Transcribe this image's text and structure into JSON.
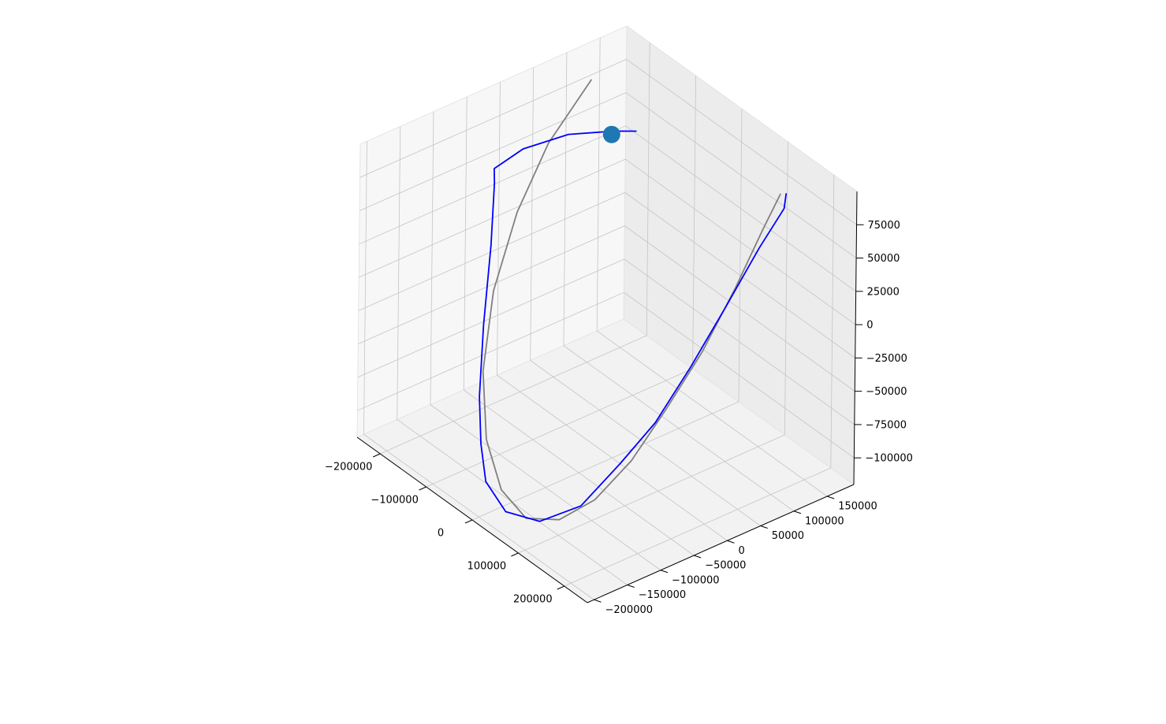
{
  "chart_data": {
    "type": "line",
    "projection": "3d",
    "title": "",
    "xlabel": "",
    "ylabel": "",
    "zlabel": "",
    "grid": true,
    "legend": "none",
    "xlim": [
      -250000,
      250000
    ],
    "ylim": [
      -210000,
      190000
    ],
    "zlim": [
      -120000,
      100000
    ],
    "x_ticks": [
      {
        "value": -200000,
        "label": "−200000"
      },
      {
        "value": -100000,
        "label": "−100000"
      },
      {
        "value": 0,
        "label": "0"
      },
      {
        "value": 100000,
        "label": "100000"
      },
      {
        "value": 200000,
        "label": "200000"
      }
    ],
    "y_ticks": [
      {
        "value": -200000,
        "label": "−200000"
      },
      {
        "value": -150000,
        "label": "−150000"
      },
      {
        "value": -100000,
        "label": "−100000"
      },
      {
        "value": -50000,
        "label": "−50000"
      },
      {
        "value": 0,
        "label": "0"
      },
      {
        "value": 50000,
        "label": "50000"
      },
      {
        "value": 100000,
        "label": "100000"
      },
      {
        "value": 150000,
        "label": "150000"
      }
    ],
    "z_ticks": [
      {
        "value": -100000,
        "label": "−100000"
      },
      {
        "value": -75000,
        "label": "−75000"
      },
      {
        "value": -50000,
        "label": "−50000"
      },
      {
        "value": -25000,
        "label": "−25000"
      },
      {
        "value": 0,
        "label": "0"
      },
      {
        "value": 25000,
        "label": "25000"
      },
      {
        "value": 50000,
        "label": "50000"
      },
      {
        "value": 75000,
        "label": "75000"
      }
    ],
    "series": [
      {
        "color": "#808080",
        "points": [
          [
            -248000,
            136000,
            72000
          ],
          [
            -230000,
            60000,
            46000
          ],
          [
            -196000,
            -10000,
            18000
          ],
          [
            -148000,
            -78000,
            -14000
          ],
          [
            -86000,
            -136000,
            -46000
          ],
          [
            -20000,
            -176000,
            -72000
          ],
          [
            42000,
            -196000,
            -90000
          ],
          [
            96000,
            -196000,
            -98000
          ],
          [
            136000,
            -174000,
            -94000
          ],
          [
            158000,
            -136000,
            -82000
          ],
          [
            170000,
            -90000,
            -60000
          ],
          [
            176000,
            -42000,
            -30000
          ],
          [
            178000,
            10000,
            2000
          ],
          [
            176000,
            60000,
            38000
          ],
          [
            170000,
            104000,
            70000
          ],
          [
            162000,
            136000,
            88000
          ]
        ]
      },
      {
        "color": "#0000ff",
        "points": [
          [
            -16000,
            42000,
            112000
          ],
          [
            -34000,
            22000,
            112000
          ],
          [
            -76000,
            -18000,
            108000
          ],
          [
            -116000,
            -58000,
            96000
          ],
          [
            -138000,
            -86000,
            82000
          ],
          [
            -140000,
            -84000,
            70000
          ],
          [
            -126000,
            -98000,
            30000
          ],
          [
            -106000,
            -122000,
            -20000
          ],
          [
            -76000,
            -148000,
            -60000
          ],
          [
            -46000,
            -166000,
            -84000
          ],
          [
            -6000,
            -186000,
            -98000
          ],
          [
            52000,
            -196000,
            -104000
          ],
          [
            108000,
            -184000,
            -100000
          ],
          [
            148000,
            -150000,
            -86000
          ],
          [
            166000,
            -104000,
            -60000
          ],
          [
            178000,
            -60000,
            -36000
          ],
          [
            182000,
            -10000,
            -4000
          ],
          [
            184000,
            40000,
            30000
          ],
          [
            186000,
            88000,
            64000
          ],
          [
            182000,
            128000,
            84000
          ],
          [
            166000,
            142000,
            88000
          ]
        ]
      }
    ],
    "markers": [
      {
        "color": "#1f77b4",
        "point": [
          -40000,
          22000,
          108000
        ]
      }
    ]
  }
}
